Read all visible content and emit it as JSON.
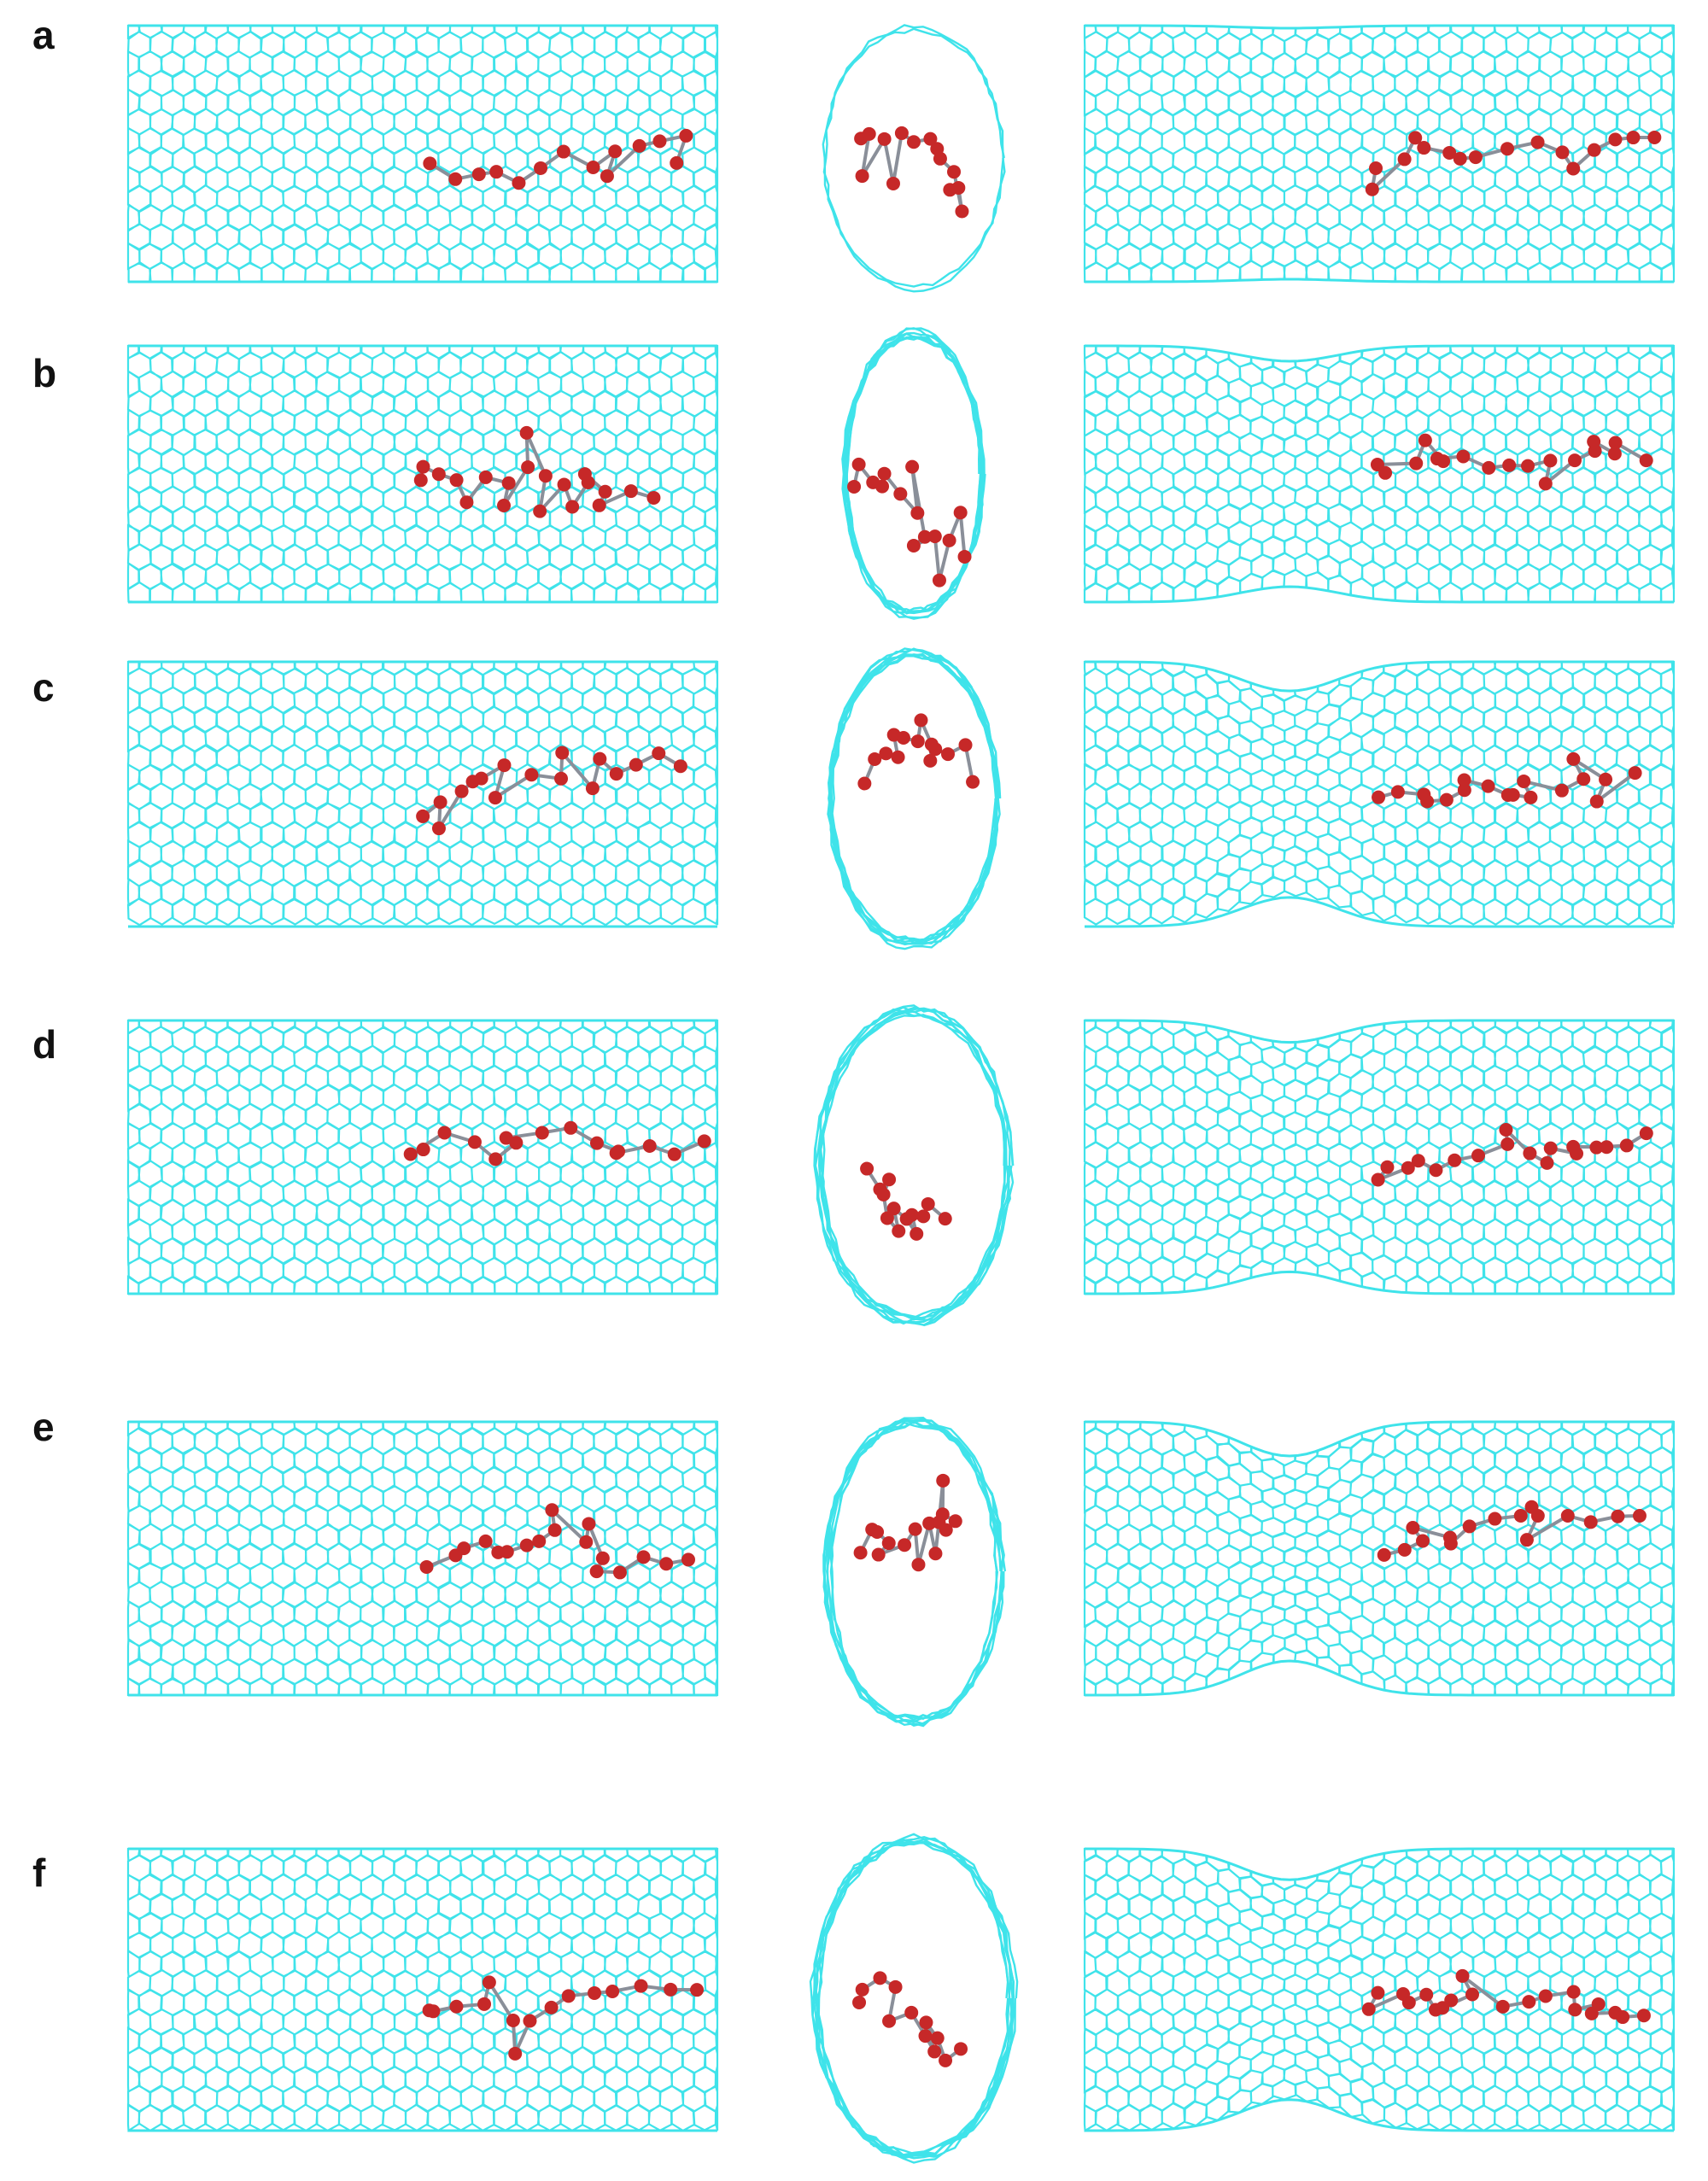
{
  "panels": [
    {
      "label": "a"
    },
    {
      "label": "b"
    },
    {
      "label": "c"
    },
    {
      "label": "d"
    },
    {
      "label": "e"
    },
    {
      "label": "f"
    }
  ],
  "colors": {
    "nanotube": "#3fe3ea",
    "molecule_atom": "#c62828",
    "molecule_bond": "#8a8f99",
    "label": "#111111"
  }
}
